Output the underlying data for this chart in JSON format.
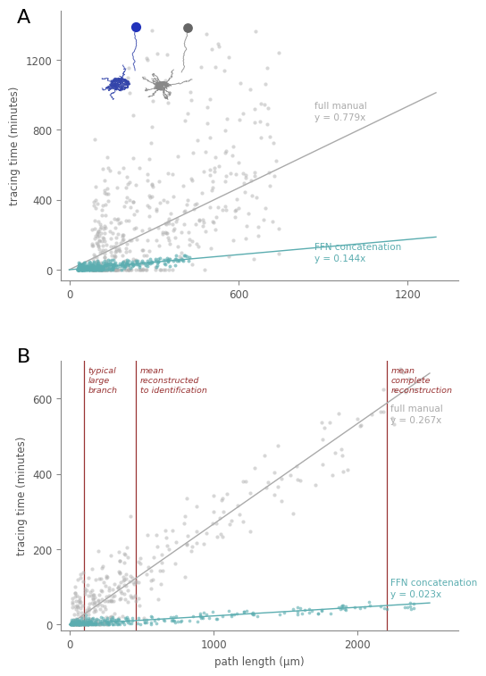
{
  "panel_A": {
    "title": "A",
    "ylabel": "tracing time (minutes)",
    "xlim": [
      -30,
      1380
    ],
    "ylim": [
      -60,
      1480
    ],
    "xticks": [
      0,
      600,
      1200
    ],
    "yticks": [
      0,
      400,
      800,
      1200
    ],
    "manual_slope": 0.779,
    "ffn_slope": 0.144,
    "manual_label": "full manual\ny = 0.779x",
    "ffn_label": "FFN concatenation\ny = 0.144x",
    "manual_color": "#aaaaaa",
    "ffn_color": "#5badb0",
    "dot_manual_color": "#b0b0b0",
    "dot_ffn_color": "#5badb0",
    "special_dot1_x": 235,
    "special_dot1_y": 1390,
    "special_dot1_color": "#2233bb",
    "special_dot2_x": 420,
    "special_dot2_y": 1385,
    "special_dot2_color": "#666666",
    "neuron_color_left": "#3344aa",
    "neuron_color_right": "#888888"
  },
  "panel_B": {
    "title": "B",
    "xlabel": "path length (μm)",
    "ylabel": "tracing time (minutes)",
    "xlim": [
      -60,
      2700
    ],
    "ylim": [
      -15,
      700
    ],
    "xticks": [
      0,
      1000,
      2000
    ],
    "yticks": [
      0,
      200,
      400,
      600
    ],
    "manual_slope": 0.267,
    "ffn_slope": 0.023,
    "manual_label": "full manual\ny = 0.267x",
    "ffn_label": "FFN concatenation\ny = 0.023x",
    "manual_color": "#aaaaaa",
    "ffn_color": "#5badb0",
    "dot_manual_color": "#b0b0b0",
    "dot_ffn_color": "#5badb0",
    "vline1_x": 100,
    "vline2_x": 460,
    "vline3_x": 2200,
    "vline_color": "#993333",
    "vline1_label": "typical\nlarge\nbranch",
    "vline2_label": "mean\nreconstructed\nto identification",
    "vline3_label": "mean\ncomplete\nreconstruction"
  }
}
